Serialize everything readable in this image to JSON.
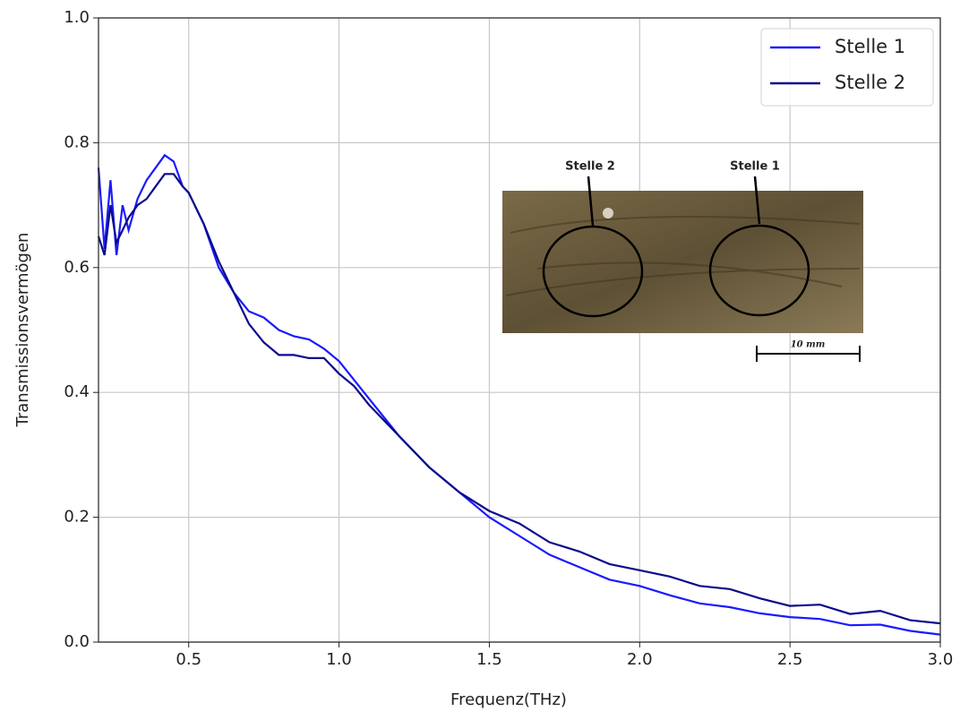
{
  "chart_data": {
    "type": "line",
    "x_label": "Frequenz(THz)",
    "y_label": "Transmissionsvermögen",
    "x": [
      0.2,
      0.22,
      0.24,
      0.26,
      0.28,
      0.3,
      0.33,
      0.36,
      0.39,
      0.42,
      0.45,
      0.48,
      0.5,
      0.55,
      0.6,
      0.65,
      0.7,
      0.75,
      0.8,
      0.85,
      0.9,
      0.95,
      1.0,
      1.05,
      1.1,
      1.2,
      1.3,
      1.4,
      1.5,
      1.6,
      1.7,
      1.8,
      1.9,
      2.0,
      2.1,
      2.2,
      2.3,
      2.4,
      2.5,
      2.6,
      2.7,
      2.8,
      2.9,
      3.0
    ],
    "series": [
      {
        "name": "Stelle 1",
        "color": "#1a1aff",
        "values": [
          0.76,
          0.63,
          0.74,
          0.62,
          0.7,
          0.66,
          0.71,
          0.74,
          0.76,
          0.78,
          0.77,
          0.73,
          0.72,
          0.67,
          0.6,
          0.56,
          0.53,
          0.52,
          0.5,
          0.49,
          0.485,
          0.47,
          0.45,
          0.42,
          0.39,
          0.33,
          0.28,
          0.24,
          0.2,
          0.17,
          0.14,
          0.12,
          0.1,
          0.09,
          0.075,
          0.062,
          0.056,
          0.046,
          0.04,
          0.037,
          0.027,
          0.028,
          0.018,
          0.012
        ]
      },
      {
        "name": "Stelle 2",
        "color": "#0a0a8c",
        "values": [
          0.65,
          0.62,
          0.7,
          0.64,
          0.66,
          0.68,
          0.7,
          0.71,
          0.73,
          0.75,
          0.75,
          0.73,
          0.72,
          0.67,
          0.61,
          0.56,
          0.51,
          0.48,
          0.46,
          0.46,
          0.455,
          0.455,
          0.43,
          0.41,
          0.38,
          0.33,
          0.28,
          0.24,
          0.21,
          0.19,
          0.16,
          0.145,
          0.125,
          0.115,
          0.105,
          0.09,
          0.085,
          0.07,
          0.058,
          0.06,
          0.045,
          0.05,
          0.035,
          0.03
        ]
      }
    ],
    "xlim": [
      0.2,
      3.0
    ],
    "xticks": [
      0.5,
      {
        "value": 1,
        "label": "1.0"
      },
      1.5,
      {
        "value": 2,
        "label": "2.0"
      },
      2.5,
      {
        "value": 3,
        "label": "3.0"
      }
    ],
    "ylim": [
      0,
      1
    ],
    "yticks": [
      {
        "value": 0,
        "label": "0.0"
      },
      0.2,
      0.4,
      0.6,
      0.8,
      {
        "value": 1,
        "label": "1.0"
      }
    ],
    "grid": true,
    "legend": "upper right",
    "inset_labels": [
      "Stelle 2",
      "Stelle 1",
      "10 mm"
    ]
  }
}
